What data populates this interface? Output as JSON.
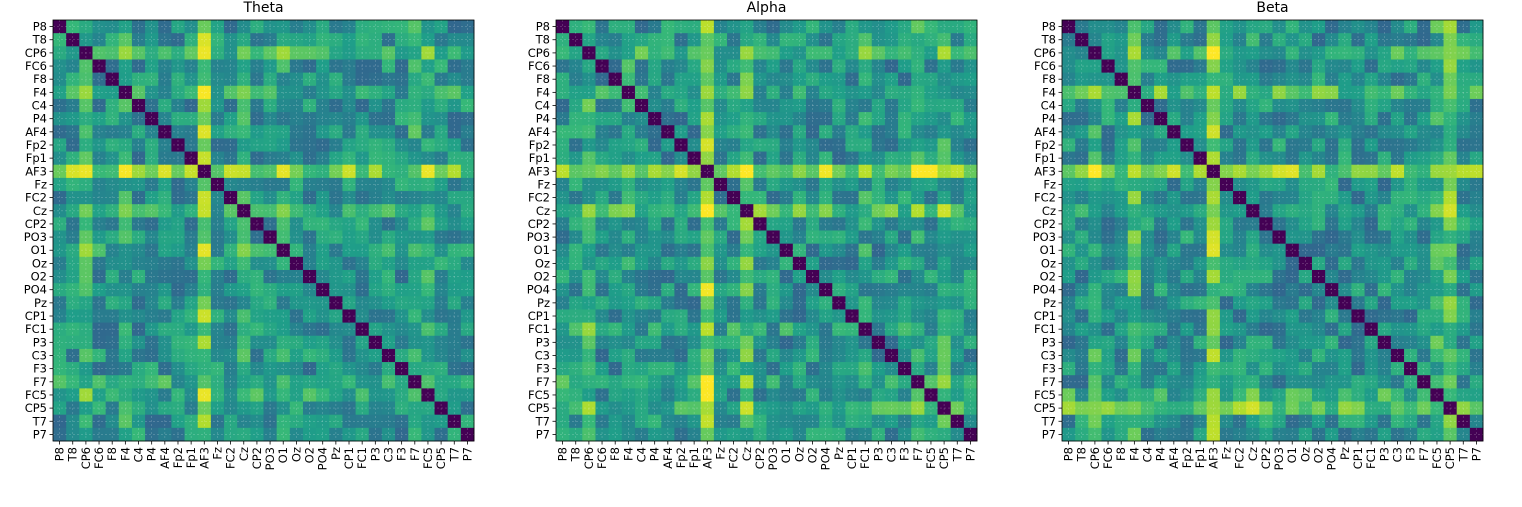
{
  "chart_data": [
    {
      "type": "heatmap",
      "title": "Theta",
      "labels": [
        "P8",
        "T8",
        "CP6",
        "FC6",
        "F8",
        "F4",
        "C4",
        "P4",
        "AF4",
        "Fp2",
        "Fp1",
        "AF3",
        "Fz",
        "FC2",
        "Cz",
        "CP2",
        "PO3",
        "O1",
        "Oz",
        "O2",
        "PO4",
        "Pz",
        "CP1",
        "FC1",
        "P3",
        "C3",
        "F3",
        "F7",
        "FC5",
        "CP5",
        "T7",
        "P7"
      ],
      "colormap": "viridis",
      "diagonal_value": 0,
      "grid": true,
      "base_value": 0.5,
      "row_boost": {
        "AF3": 0.3,
        "CP6": 0.12,
        "Cz": 0.1,
        "F4": 0.08,
        "FC5": 0.08,
        "F7": 0.1,
        "O1": 0.06
      }
    },
    {
      "type": "heatmap",
      "title": "Alpha",
      "labels": [
        "P8",
        "T8",
        "CP6",
        "FC6",
        "F8",
        "F4",
        "C4",
        "P4",
        "AF4",
        "Fp2",
        "Fp1",
        "AF3",
        "Fz",
        "FC2",
        "Cz",
        "CP2",
        "PO3",
        "O1",
        "Oz",
        "O2",
        "PO4",
        "Pz",
        "CP1",
        "FC1",
        "P3",
        "C3",
        "F3",
        "F7",
        "FC5",
        "CP5",
        "T7",
        "P7"
      ],
      "colormap": "viridis",
      "diagonal_value": 0,
      "grid": true,
      "base_value": 0.5,
      "row_boost": {
        "AF3": 0.33,
        "Cz": 0.2,
        "CP6": 0.14,
        "F4": 0.1,
        "CP5": 0.12,
        "F7": 0.1,
        "FC1": 0.06
      }
    },
    {
      "type": "heatmap",
      "title": "Beta",
      "labels": [
        "P8",
        "T8",
        "CP6",
        "FC6",
        "F8",
        "F4",
        "C4",
        "P4",
        "AF4",
        "Fp2",
        "Fp1",
        "AF3",
        "Fz",
        "FC2",
        "Cz",
        "CP2",
        "PO3",
        "O1",
        "Oz",
        "O2",
        "PO4",
        "Pz",
        "CP1",
        "FC1",
        "P3",
        "C3",
        "F3",
        "F7",
        "FC5",
        "CP5",
        "T7",
        "P7"
      ],
      "colormap": "viridis",
      "diagonal_value": 0,
      "grid": true,
      "base_value": 0.5,
      "row_boost": {
        "AF3": 0.3,
        "F4": 0.22,
        "CP5": 0.22,
        "CP6": 0.12,
        "FC5": 0.12,
        "Cz": 0.06
      }
    }
  ]
}
